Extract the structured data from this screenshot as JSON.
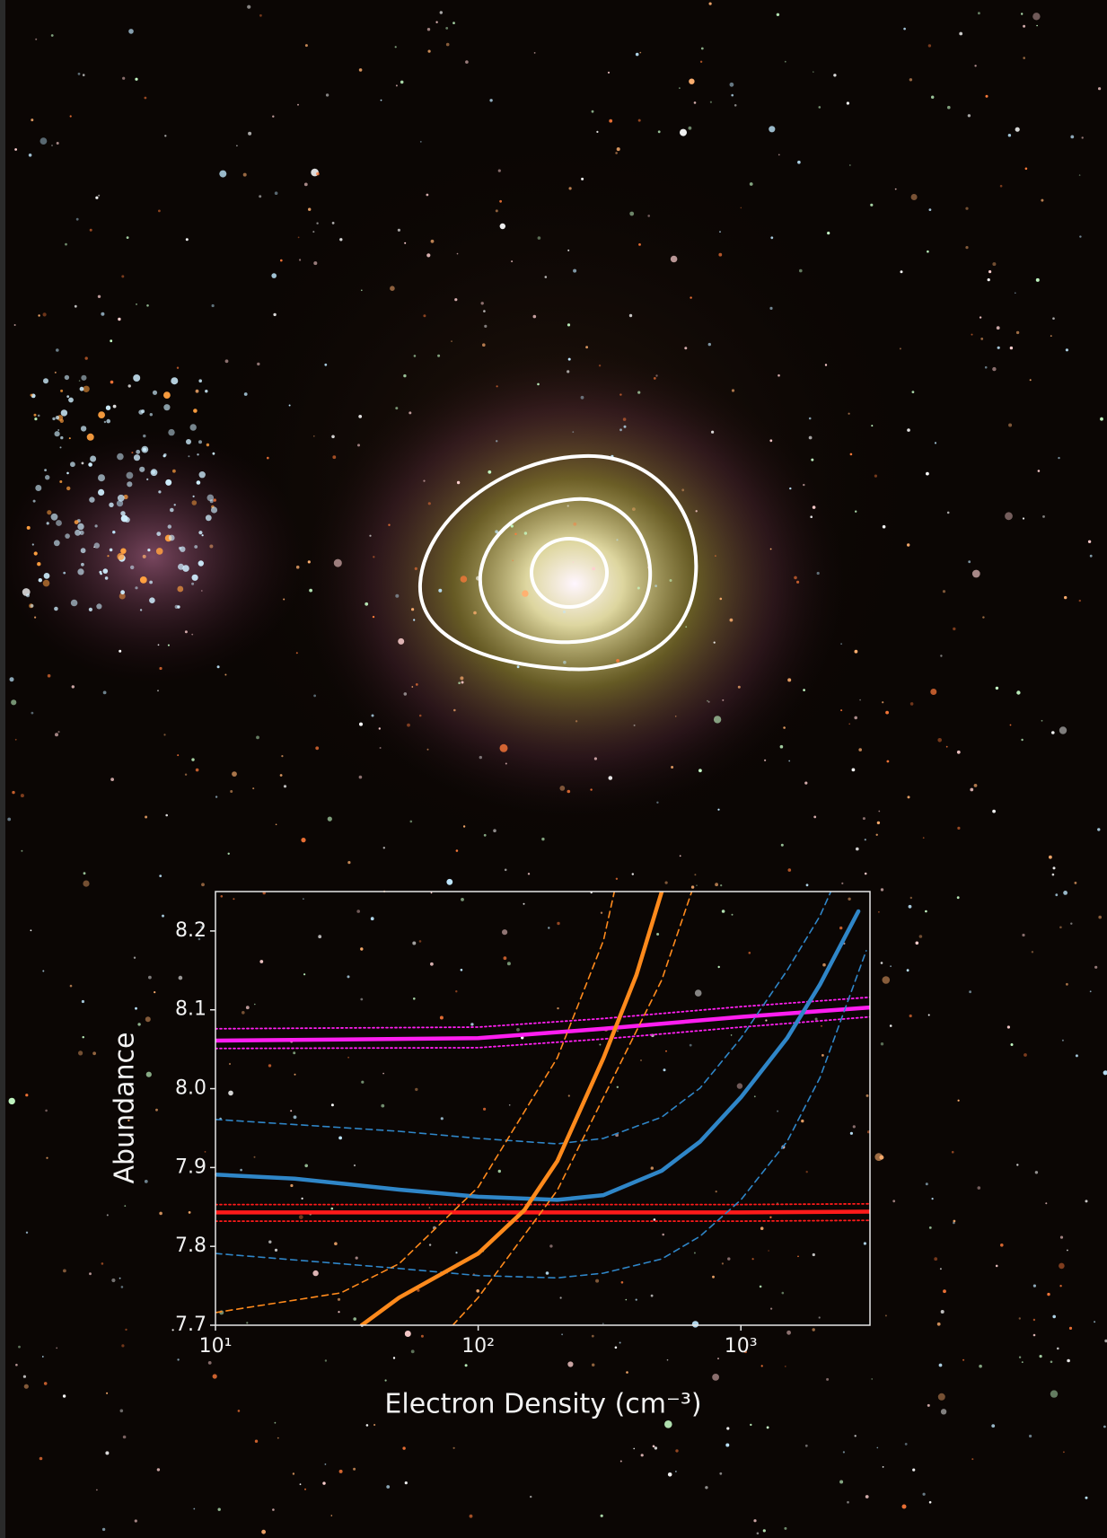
{
  "chart_data": {
    "type": "line",
    "x_label": "Electron Density (cm⁻³)",
    "y_label": "Abundance",
    "xscale": "log",
    "xlim": [
      10,
      3100
    ],
    "ylim": [
      7.7,
      8.25
    ],
    "xticks": [
      {
        "value": 10,
        "label": "10¹"
      },
      {
        "value": 100,
        "label": "10²"
      },
      {
        "value": 1000,
        "label": "10³"
      }
    ],
    "yticks": [
      7.7,
      7.8,
      7.9,
      {
        "value": 8.0,
        "label": "8.0"
      },
      8.1,
      8.2
    ],
    "series": [
      {
        "color": "#ff1ef0",
        "style": "solid",
        "x": [
          10,
          100,
          300,
          1000,
          3100
        ],
        "values": [
          8.061,
          8.064,
          8.076,
          8.091,
          8.103
        ]
      },
      {
        "color": "#ff1ef0",
        "style": "dotted",
        "x": [
          10,
          100,
          300,
          1000,
          3100
        ],
        "values": [
          8.076,
          8.078,
          8.089,
          8.104,
          8.116
        ]
      },
      {
        "color": "#ff1ef0",
        "style": "dotted",
        "x": [
          10,
          100,
          300,
          1000,
          3100
        ],
        "values": [
          8.051,
          8.052,
          8.063,
          8.078,
          8.091
        ]
      },
      {
        "color": "#ff1a1a",
        "style": "solid",
        "x": [
          10,
          100,
          1000,
          3100
        ],
        "values": [
          7.843,
          7.843,
          7.843,
          7.844
        ]
      },
      {
        "color": "#ff1a1a",
        "style": "dotted",
        "x": [
          10,
          100,
          1000,
          3100
        ],
        "values": [
          7.853,
          7.853,
          7.853,
          7.854
        ]
      },
      {
        "color": "#ff1a1a",
        "style": "dotted",
        "x": [
          10,
          100,
          1000,
          3100
        ],
        "values": [
          7.832,
          7.832,
          7.832,
          7.833
        ]
      },
      {
        "color": "#2f86c8",
        "style": "solid",
        "x": [
          10,
          20,
          50,
          100,
          200,
          300,
          500,
          700,
          1000,
          1500,
          2000,
          2800
        ],
        "values": [
          7.891,
          7.886,
          7.872,
          7.863,
          7.859,
          7.865,
          7.896,
          7.933,
          7.989,
          8.064,
          8.132,
          8.225
        ]
      },
      {
        "color": "#2f86c8",
        "style": "dashed",
        "x": [
          10,
          50,
          100,
          200,
          300,
          500,
          700,
          1000,
          1500,
          2000,
          2200
        ],
        "values": [
          7.961,
          7.946,
          7.937,
          7.93,
          7.937,
          7.964,
          8.001,
          8.064,
          8.15,
          8.219,
          8.25
        ]
      },
      {
        "color": "#2f86c8",
        "style": "dashed",
        "x": [
          10,
          50,
          100,
          200,
          300,
          500,
          700,
          1000,
          1500,
          2000,
          3000
        ],
        "values": [
          7.791,
          7.772,
          7.763,
          7.76,
          7.766,
          7.784,
          7.813,
          7.859,
          7.933,
          8.014,
          8.175
        ]
      },
      {
        "color": "#ff8a1c",
        "style": "solid",
        "x": [
          36,
          50,
          100,
          150,
          200,
          300,
          400,
          500
        ],
        "values": [
          7.7,
          7.735,
          7.791,
          7.846,
          7.908,
          8.039,
          8.144,
          8.25
        ]
      },
      {
        "color": "#ff8a1c",
        "style": "dashed",
        "x": [
          10,
          30,
          50,
          100,
          200,
          300,
          330
        ],
        "values": [
          7.716,
          7.741,
          7.778,
          7.875,
          8.039,
          8.188,
          8.25
        ]
      },
      {
        "color": "#ff8a1c",
        "style": "dashed",
        "x": [
          80,
          100,
          200,
          300,
          500,
          650
        ],
        "values": [
          7.7,
          7.735,
          7.871,
          7.989,
          8.138,
          8.25
        ]
      }
    ]
  }
}
